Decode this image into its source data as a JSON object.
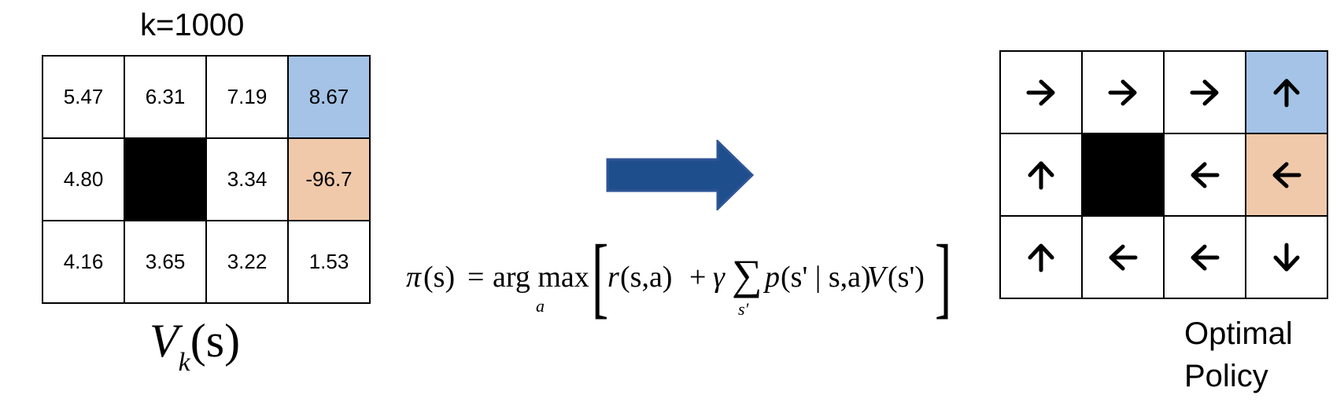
{
  "k_label": "k=1000",
  "value_grid": {
    "rows": [
      [
        {
          "v": "5.47",
          "kind": "normal"
        },
        {
          "v": "6.31",
          "kind": "normal"
        },
        {
          "v": "7.19",
          "kind": "normal"
        },
        {
          "v": "8.67",
          "kind": "goal"
        }
      ],
      [
        {
          "v": "4.80",
          "kind": "normal"
        },
        {
          "v": "",
          "kind": "wall"
        },
        {
          "v": "3.34",
          "kind": "normal"
        },
        {
          "v": "-96.7",
          "kind": "pit"
        }
      ],
      [
        {
          "v": "4.16",
          "kind": "normal"
        },
        {
          "v": "3.65",
          "kind": "normal"
        },
        {
          "v": "3.22",
          "kind": "normal"
        },
        {
          "v": "1.53",
          "kind": "normal"
        }
      ]
    ]
  },
  "value_label": {
    "main": "V",
    "sub": "k",
    "arg": "(s)"
  },
  "policy_grid": {
    "rows": [
      [
        {
          "dir": "right",
          "kind": "normal"
        },
        {
          "dir": "right",
          "kind": "normal"
        },
        {
          "dir": "right",
          "kind": "normal"
        },
        {
          "dir": "up",
          "kind": "goal"
        }
      ],
      [
        {
          "dir": "up",
          "kind": "normal"
        },
        {
          "dir": "",
          "kind": "wall"
        },
        {
          "dir": "left",
          "kind": "normal"
        },
        {
          "dir": "left",
          "kind": "pit"
        }
      ],
      [
        {
          "dir": "up",
          "kind": "normal"
        },
        {
          "dir": "left",
          "kind": "normal"
        },
        {
          "dir": "left",
          "kind": "normal"
        },
        {
          "dir": "down",
          "kind": "normal"
        }
      ]
    ]
  },
  "policy_label": {
    "line1": "Optimal",
    "line2": "Policy"
  },
  "formula": {
    "pi": "π",
    "s_arg": "(s)",
    "eq": "=",
    "argmax": "arg max",
    "argmax_sub": "a",
    "r": "r",
    "r_args": "(s,a)",
    "plus": "+",
    "gamma": "γ",
    "sum": "∑",
    "sum_sub": "s'",
    "p": "p",
    "p_args": "(s' | s,a)",
    "V": "V",
    "V_arg": "(s')"
  },
  "colors": {
    "goal": "#a4c3e6",
    "pit": "#f0c9aa",
    "wall": "#000000",
    "arrow_fill": "#1f4e8c",
    "arrow_stroke": "#2f5597"
  }
}
